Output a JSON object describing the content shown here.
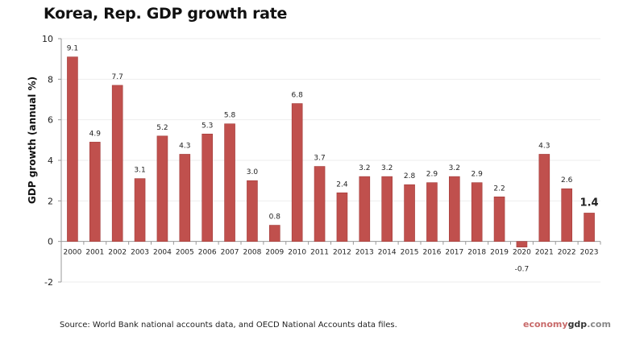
{
  "chart_data": {
    "type": "bar",
    "title": "Korea, Rep. GDP growth rate",
    "ylabel": "GDP growth (annual %)",
    "xlabel": "",
    "ylim": [
      -2,
      10
    ],
    "yticks": [
      -2,
      0,
      2,
      4,
      6,
      8,
      10
    ],
    "grid": true,
    "categories": [
      "2000",
      "2001",
      "2002",
      "2003",
      "2004",
      "2005",
      "2006",
      "2007",
      "2008",
      "2009",
      "2010",
      "2011",
      "2012",
      "2013",
      "2014",
      "2015",
      "2016",
      "2017",
      "2018",
      "2019",
      "2020",
      "2021",
      "2022",
      "2023"
    ],
    "values": [
      9.1,
      4.9,
      7.7,
      3.1,
      5.2,
      4.3,
      5.3,
      5.8,
      3.0,
      0.8,
      6.8,
      3.7,
      2.4,
      3.2,
      3.2,
      2.8,
      2.9,
      3.2,
      2.9,
      2.2,
      -0.7,
      4.3,
      2.6,
      1.4
    ],
    "labels": [
      "9.1",
      "4.9",
      "7.7",
      "3.1",
      "5.2",
      "4.3",
      "5.3",
      "5.8",
      "3.0",
      "0.8",
      "6.8",
      "3.7",
      "2.4",
      "3.2",
      "3.2",
      "2.8",
      "2.9",
      "3.2",
      "2.9",
      "2.2",
      "-0.7",
      "4.3",
      "2.6",
      "1.4"
    ],
    "bar_color": "#c0504d",
    "highlight_last_label": true
  },
  "source": "Source:  World Bank national accounts data, and OECD National Accounts data files.",
  "logo": {
    "part1": "economy",
    "part2": "gdp",
    "part3": ".com"
  }
}
